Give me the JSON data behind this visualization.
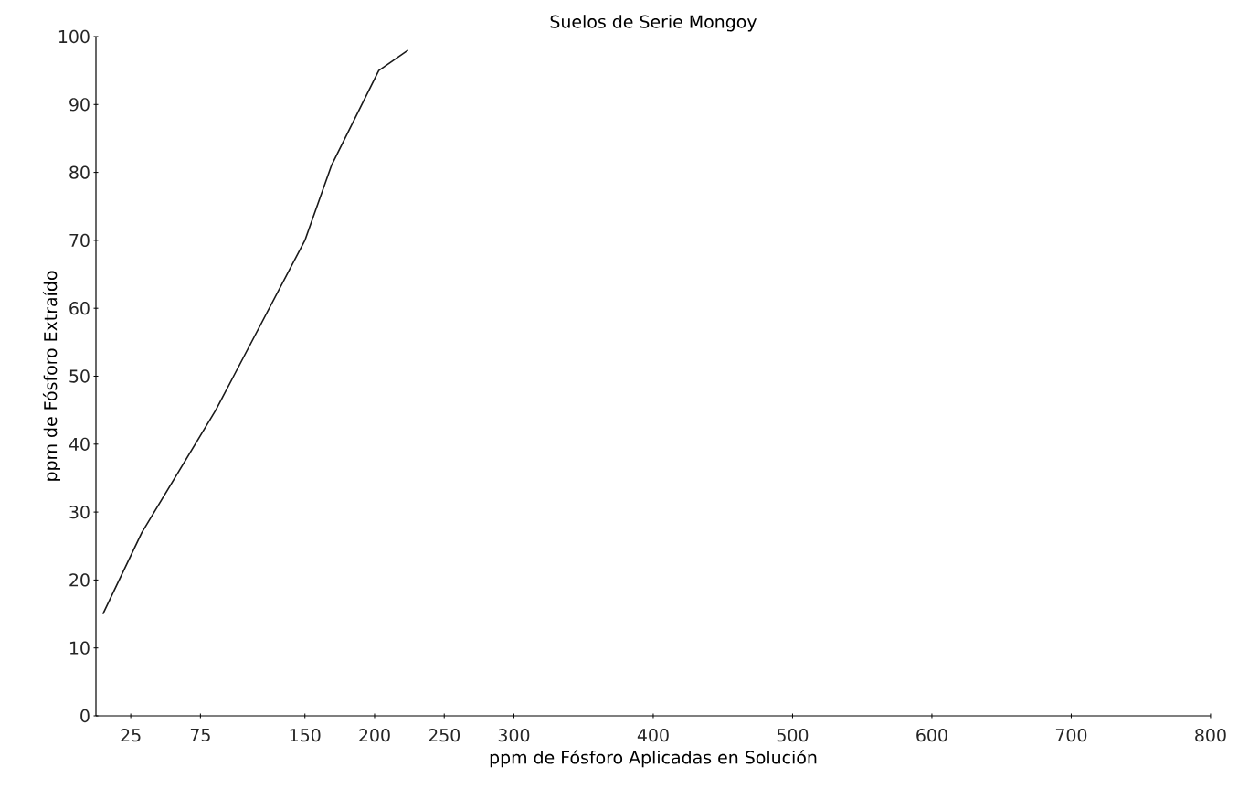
{
  "chart_data": {
    "type": "line",
    "title": "Suelos de Serie Mongoy",
    "xlabel": "ppm de Fósforo Aplicadas en Solución",
    "ylabel": "ppm de Fósforo Extraído",
    "x": [
      5,
      33,
      86,
      150,
      169,
      203,
      224
    ],
    "series": [
      {
        "color": "#1a1a1a",
        "values": [
          15,
          27,
          45,
          70,
          81,
          95,
          98
        ]
      }
    ],
    "xlim": [
      0,
      800
    ],
    "xticks": [
      25,
      75,
      150,
      200,
      250,
      300,
      400,
      500,
      600,
      700,
      800
    ],
    "ylim": [
      0,
      100
    ],
    "yticks": [
      0,
      10,
      20,
      30,
      40,
      50,
      60,
      70,
      80,
      90,
      100
    ],
    "grid": false,
    "marker": "none",
    "line_style": "solid"
  }
}
